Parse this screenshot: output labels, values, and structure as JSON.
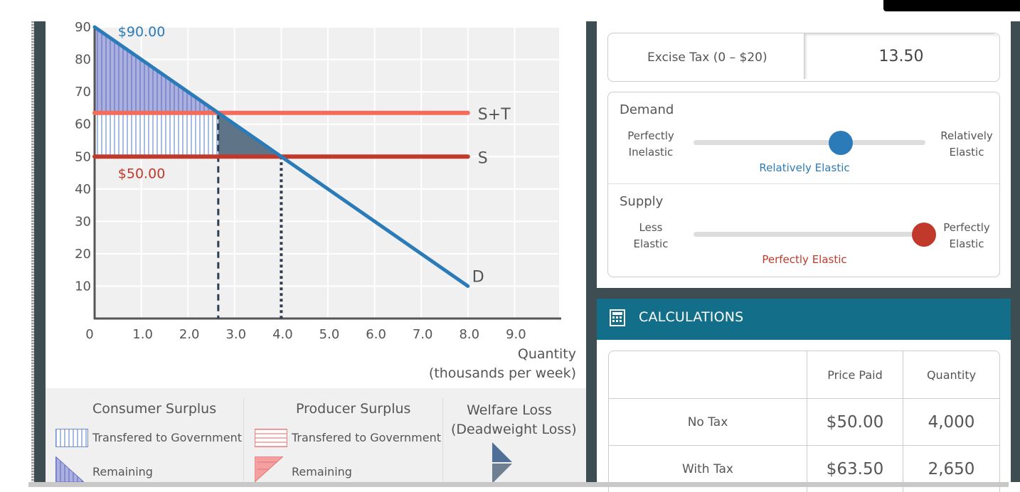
{
  "chart": {
    "y_ticks": [
      "90",
      "80",
      "70",
      "60",
      "50",
      "40",
      "30",
      "20",
      "10"
    ],
    "x_ticks": [
      "0",
      "1.0",
      "2.0",
      "3.0",
      "4.0",
      "5.0",
      "6.0",
      "7.0",
      "8.0",
      "9.0"
    ],
    "xlabel_line1": "Quantity",
    "xlabel_line2": "(thousands per week)",
    "label_st": "S+T",
    "label_s": "S",
    "label_d": "D",
    "price_high": "$90.00",
    "price_low": "$50.00"
  },
  "chart_data": {
    "type": "line",
    "xlim": [
      0,
      10
    ],
    "ylim": [
      0,
      90
    ],
    "x_ticks": [
      0,
      1,
      2,
      3,
      4,
      5,
      6,
      7,
      8,
      9
    ],
    "y_ticks": [
      10,
      20,
      30,
      40,
      50,
      60,
      70,
      80,
      90
    ],
    "xlabel": "Quantity (thousands per week)",
    "ylabel": "",
    "grid": true,
    "series": [
      {
        "name": "D",
        "x": [
          0,
          8
        ],
        "y": [
          90,
          10
        ]
      },
      {
        "name": "S",
        "x": [
          0,
          8
        ],
        "y": [
          50,
          50
        ]
      },
      {
        "name": "S+T",
        "x": [
          0,
          8
        ],
        "y": [
          63.5,
          63.5
        ]
      }
    ],
    "reference_lines": [
      {
        "x": 2.65,
        "y_range": [
          0,
          63.5
        ]
      },
      {
        "x": 4.0,
        "y_range": [
          0,
          50
        ]
      }
    ],
    "annotations": [
      "$90.00",
      "$50.00"
    ],
    "colors": {
      "demand": "#2b7bb9",
      "supply": "#c0392b",
      "supply_plus_tax": "#f26b5b"
    }
  },
  "legend": {
    "consumer_heading": "Consumer Surplus",
    "producer_heading": "Producer Surplus",
    "welfare_heading_line1": "Welfare Loss",
    "welfare_heading_line2": "(Deadweight Loss)",
    "transfer_label": "Transfered to Government",
    "transfer_label_2": "Transfered to Government",
    "remaining_label": "Remaining",
    "remaining_label_2": "Remaining"
  },
  "tax": {
    "label": "Excise Tax (0 – $20)",
    "value": "13.50"
  },
  "demand": {
    "title": "Demand",
    "left_line1": "Perfectly",
    "left_line2": "Inelastic",
    "right_line1": "Relatively",
    "right_line2": "Elastic",
    "current": "Relatively Elastic",
    "position": 0.65,
    "color": "#2b7bb9"
  },
  "supply": {
    "title": "Supply",
    "left_line1": "Less",
    "left_line2": "Elastic",
    "right_line1": "Perfectly",
    "right_line2": "Elastic",
    "current": "Perfectly Elastic",
    "position": 1.0,
    "color": "#c0392b"
  },
  "calculations": {
    "title": "CALCULATIONS",
    "col_price": "Price Paid",
    "col_qty": "Quantity",
    "rows": [
      {
        "label": "No Tax",
        "price": "$50.00",
        "qty": "4,000"
      },
      {
        "label": "With Tax",
        "price": "$63.50",
        "qty": "2,650"
      }
    ]
  }
}
